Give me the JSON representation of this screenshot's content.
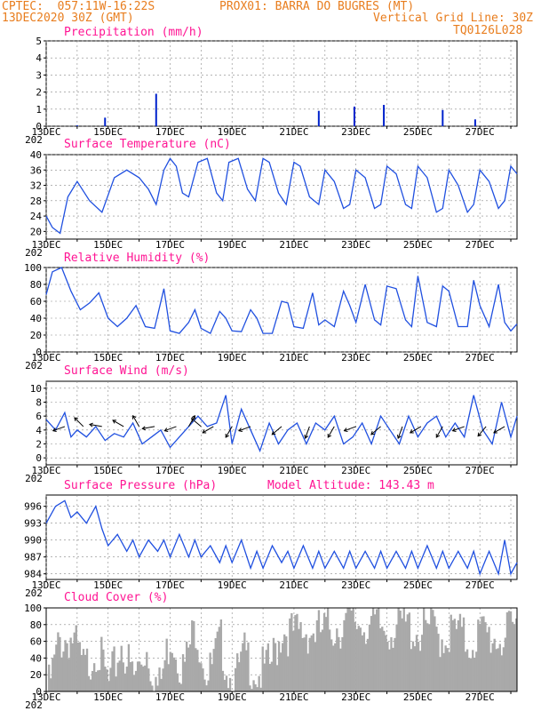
{
  "header": {
    "line1_left": "CPTEC:  057:11W-16:22S",
    "line1_mid": "PROX01: BARRA DO BUGRES (MT)",
    "line2_left": "13DEC2020 30Z (GMT)",
    "line2_right": "Vertical Grid Line: 30Z",
    "line3_right": "TQ0126L028"
  },
  "x_ticks": [
    "13DEC",
    "15DEC",
    "17DEC",
    "19DEC",
    "21DEC",
    "23DEC",
    "25DEC",
    "27DEC"
  ],
  "x_prefix": "202",
  "colors": {
    "header": "#e87d1e",
    "title": "#ff1493",
    "line": "#2050e0",
    "bar": "#0022cc",
    "cloud": "#a9a9a9",
    "grid": "#888888"
  },
  "chart_data": [
    {
      "type": "bar",
      "title": "Precipitation (mm/h)",
      "ylim": [
        0,
        5
      ],
      "yticks": [
        0,
        1,
        2,
        3,
        4,
        5
      ],
      "x_range_days": [
        13,
        28.2
      ],
      "x": [
        14.0,
        14.9,
        16.55,
        21.8,
        22.95,
        23.9,
        25.8,
        26.85
      ],
      "values": [
        0.05,
        0.5,
        1.9,
        0.9,
        1.15,
        1.25,
        0.95,
        0.4
      ]
    },
    {
      "type": "line",
      "title": "Surface Temperature (nC)",
      "ylim": [
        18,
        40
      ],
      "yticks": [
        20,
        24,
        28,
        32,
        36,
        40
      ],
      "x": [
        13.0,
        13.2,
        13.45,
        13.7,
        14.0,
        14.4,
        14.8,
        15.2,
        15.6,
        16.0,
        16.3,
        16.55,
        16.8,
        17.0,
        17.2,
        17.4,
        17.6,
        17.9,
        18.2,
        18.5,
        18.7,
        18.9,
        19.2,
        19.5,
        19.75,
        20.0,
        20.2,
        20.5,
        20.75,
        21.0,
        21.2,
        21.5,
        21.8,
        22.0,
        22.3,
        22.6,
        22.8,
        23.0,
        23.3,
        23.6,
        23.8,
        24.0,
        24.3,
        24.6,
        24.8,
        25.0,
        25.3,
        25.6,
        25.8,
        26.0,
        26.3,
        26.6,
        26.8,
        27.0,
        27.3,
        27.6,
        27.8,
        28.0,
        28.2
      ],
      "values": [
        24,
        21,
        19.5,
        29,
        33,
        28,
        25,
        34,
        36,
        34,
        31,
        27,
        36,
        39,
        37,
        30,
        29,
        38,
        39,
        30,
        28,
        38,
        39,
        31,
        28,
        39,
        38,
        30,
        27,
        38,
        37,
        29,
        27,
        36,
        33,
        26,
        27,
        36,
        34,
        26,
        27,
        37,
        35,
        27,
        26,
        37,
        34,
        25,
        26,
        36,
        32,
        25,
        27,
        36,
        33,
        26,
        28,
        37,
        35
      ]
    },
    {
      "type": "line",
      "title": "Relative Humidity (%)",
      "ylim": [
        0,
        100
      ],
      "yticks": [
        0,
        20,
        40,
        60,
        80,
        100
      ],
      "x": [
        13.0,
        13.2,
        13.5,
        13.8,
        14.1,
        14.4,
        14.7,
        15.0,
        15.3,
        15.6,
        15.9,
        16.2,
        16.5,
        16.8,
        17.0,
        17.3,
        17.6,
        17.8,
        18.0,
        18.3,
        18.6,
        18.8,
        19.0,
        19.3,
        19.6,
        19.8,
        20.0,
        20.3,
        20.6,
        20.8,
        21.0,
        21.3,
        21.6,
        21.8,
        22.0,
        22.3,
        22.6,
        22.8,
        23.0,
        23.3,
        23.6,
        23.8,
        24.0,
        24.3,
        24.6,
        24.8,
        25.0,
        25.3,
        25.6,
        25.8,
        26.0,
        26.3,
        26.6,
        26.8,
        27.0,
        27.3,
        27.6,
        27.8,
        28.0,
        28.2
      ],
      "values": [
        68,
        95,
        100,
        72,
        50,
        58,
        70,
        40,
        30,
        40,
        55,
        30,
        28,
        75,
        25,
        22,
        35,
        50,
        28,
        22,
        48,
        40,
        25,
        24,
        50,
        40,
        22,
        22,
        60,
        58,
        30,
        28,
        70,
        32,
        38,
        30,
        72,
        55,
        35,
        80,
        38,
        32,
        78,
        75,
        38,
        30,
        90,
        35,
        30,
        78,
        72,
        30,
        30,
        85,
        55,
        30,
        80,
        35,
        25,
        33
      ]
    },
    {
      "type": "line",
      "title": "Surface Wind (m/s)",
      "ylim": [
        -1,
        11
      ],
      "yticks": [
        0,
        2,
        4,
        6,
        8,
        10
      ],
      "x": [
        13.0,
        13.3,
        13.6,
        13.8,
        14.0,
        14.3,
        14.6,
        14.9,
        15.2,
        15.5,
        15.8,
        16.1,
        16.4,
        16.7,
        17.0,
        17.3,
        17.6,
        17.9,
        18.2,
        18.5,
        18.8,
        19.0,
        19.3,
        19.6,
        19.9,
        20.2,
        20.5,
        20.8,
        21.1,
        21.4,
        21.7,
        22.0,
        22.3,
        22.6,
        22.9,
        23.2,
        23.5,
        23.8,
        24.1,
        24.4,
        24.7,
        25.0,
        25.3,
        25.6,
        25.9,
        26.2,
        26.5,
        26.8,
        27.1,
        27.4,
        27.7,
        28.0,
        28.2
      ],
      "values": [
        5.5,
        4,
        6.5,
        3,
        4,
        3,
        4.5,
        2.5,
        3.5,
        3,
        5,
        2,
        3,
        4,
        1.5,
        3,
        4.5,
        6,
        4.5,
        5,
        9,
        2,
        7,
        4,
        1,
        5,
        2,
        4,
        5,
        2,
        5,
        4,
        6,
        2,
        3,
        5,
        2,
        6,
        4,
        2,
        6,
        3,
        5,
        6,
        3,
        5,
        3,
        9,
        4,
        2,
        8,
        3,
        6
      ]
    },
    {
      "type": "line",
      "title": "Surface Pressure (hPa)",
      "annotation": "Model Altitude: 143.43 m",
      "ylim": [
        983,
        998
      ],
      "yticks": [
        984,
        987,
        990,
        993,
        996
      ],
      "x": [
        13.0,
        13.3,
        13.6,
        13.8,
        14.0,
        14.3,
        14.6,
        14.8,
        15.0,
        15.3,
        15.6,
        15.8,
        16.0,
        16.3,
        16.6,
        16.8,
        17.0,
        17.3,
        17.6,
        17.8,
        18.0,
        18.3,
        18.6,
        18.8,
        19.0,
        19.3,
        19.6,
        19.8,
        20.0,
        20.3,
        20.6,
        20.8,
        21.0,
        21.3,
        21.6,
        21.8,
        22.0,
        22.3,
        22.6,
        22.8,
        23.0,
        23.3,
        23.6,
        23.8,
        24.0,
        24.3,
        24.6,
        24.8,
        25.0,
        25.3,
        25.6,
        25.8,
        26.0,
        26.3,
        26.6,
        26.8,
        27.0,
        27.3,
        27.6,
        27.8,
        28.0,
        28.2
      ],
      "values": [
        993,
        996,
        997,
        994,
        995,
        993,
        996,
        992,
        989,
        991,
        988,
        990,
        987,
        990,
        988,
        990,
        987,
        991,
        987,
        990,
        987,
        989,
        986,
        989,
        986,
        990,
        985,
        988,
        985,
        989,
        986,
        988,
        985,
        989,
        985,
        988,
        985,
        988,
        985,
        988,
        985,
        988,
        985,
        988,
        985,
        988,
        985,
        988,
        985,
        989,
        985,
        988,
        985,
        988,
        985,
        988,
        984,
        988,
        984,
        990,
        984,
        986
      ]
    },
    {
      "type": "area",
      "title": "Cloud Cover (%)",
      "ylim": [
        0,
        100
      ],
      "yticks": [
        0,
        20,
        40,
        60,
        80,
        100
      ],
      "x": [
        13.0,
        13.4,
        13.8,
        14.2,
        14.6,
        15.0,
        15.4,
        15.8,
        16.2,
        16.6,
        17.0,
        17.4,
        17.8,
        18.2,
        18.6,
        19.0,
        19.4,
        19.8,
        20.2,
        20.6,
        21.0,
        21.4,
        21.8,
        22.2,
        22.6,
        23.0,
        23.4,
        23.8,
        24.2,
        24.6,
        25.0,
        25.4,
        25.8,
        26.2,
        26.6,
        27.0,
        27.4,
        27.8,
        28.2
      ],
      "values": [
        10,
        75,
        80,
        40,
        70,
        20,
        72,
        30,
        68,
        15,
        85,
        40,
        95,
        30,
        75,
        20,
        60,
        35,
        45,
        90,
        82,
        88,
        85,
        92,
        95,
        98,
        96,
        90,
        92,
        94,
        85,
        90,
        80,
        88,
        72,
        85,
        80,
        78,
        95
      ]
    }
  ]
}
